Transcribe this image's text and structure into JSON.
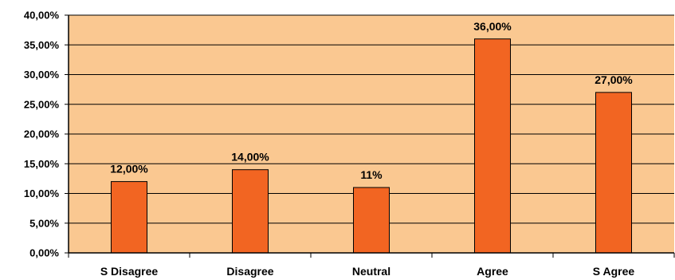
{
  "chart_data": {
    "type": "bar",
    "categories": [
      "S Disagree",
      "Disagree",
      "Neutral",
      "Agree",
      "S Agree"
    ],
    "values": [
      12,
      14,
      11,
      36,
      27
    ],
    "data_labels": [
      "12,00%",
      "14,00%",
      "11%",
      "36,00%",
      "27,00%"
    ],
    "y_ticks": [
      "0,00%",
      "5,00%",
      "10,00%",
      "15,00%",
      "20,00%",
      "25,00%",
      "30,00%",
      "35,00%",
      "40,00%"
    ],
    "ylim": [
      0,
      40
    ],
    "grid": true,
    "legend": "none",
    "colors": {
      "plot_bg": "#fac891",
      "bar_fill": "#f26522",
      "bar_stroke": "#000000",
      "grid": "#000000"
    }
  }
}
